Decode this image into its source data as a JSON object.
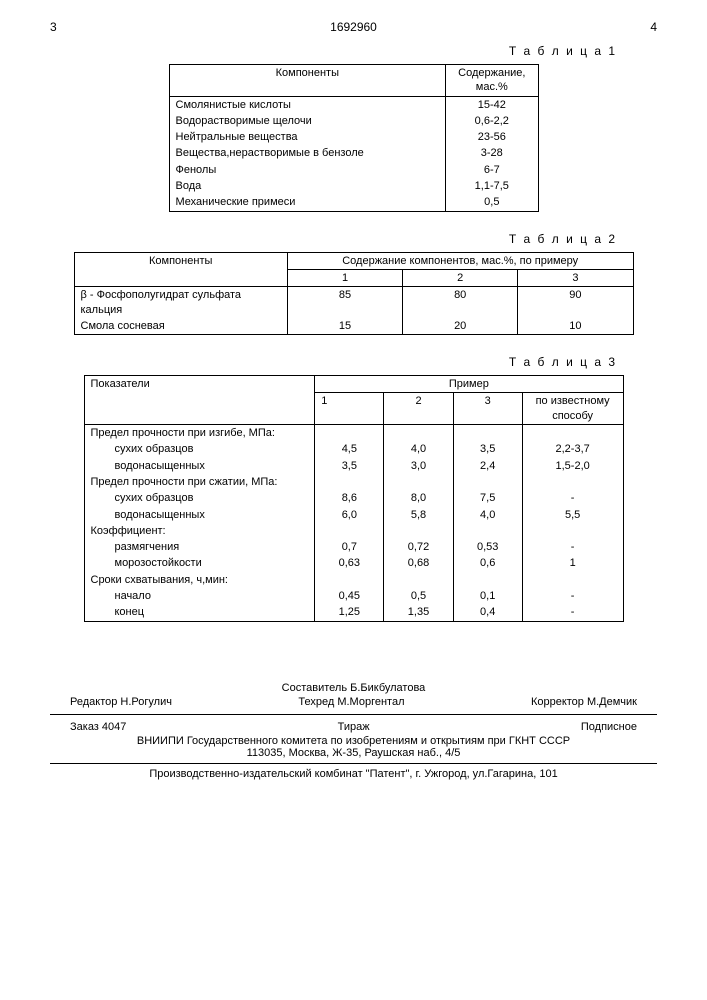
{
  "header": {
    "col_left": "3",
    "doc": "1692960",
    "col_right": "4"
  },
  "table1": {
    "caption": "Т а б л и ц а 1",
    "h1": "Компоненты",
    "h2": "Содержание, мас.%",
    "rows": [
      [
        "Смолянистые кислоты",
        "15-42"
      ],
      [
        "Водорастворимые щелочи",
        "0,6-2,2"
      ],
      [
        "Нейтральные вещества",
        "23-56"
      ],
      [
        "Вещества,нерастворимые в бензоле",
        "3-28"
      ],
      [
        "Фенолы",
        "6-7"
      ],
      [
        "Вода",
        "1,1-7,5"
      ],
      [
        "Механические примеси",
        "0,5"
      ]
    ]
  },
  "table2": {
    "caption": "Т а б л и ц а 2",
    "h1": "Компоненты",
    "h2": "Содержание компонентов, мас.%, по примеру",
    "sub": [
      "1",
      "2",
      "3"
    ],
    "rows": [
      [
        "β - Фосфополугидрат сульфата кальция",
        "85",
        "80",
        "90"
      ],
      [
        "Смола сосневая",
        "15",
        "20",
        "10"
      ]
    ]
  },
  "table3": {
    "caption": "Т а б л и ц а 3",
    "h1": "Показатели",
    "h2": "Пример",
    "sub": [
      "1",
      "2",
      "3",
      "по известному способу"
    ],
    "rows": [
      {
        "label": "Предел прочности при изгибе, МПа:",
        "vals": [
          "",
          "",
          "",
          ""
        ],
        "group": true
      },
      {
        "label": "сухих образцов",
        "vals": [
          "4,5",
          "4,0",
          "3,5",
          "2,2-3,7"
        ]
      },
      {
        "label": "водонасыщенных",
        "vals": [
          "3,5",
          "3,0",
          "2,4",
          "1,5-2,0"
        ]
      },
      {
        "label": "Предел прочности при сжатии, МПа:",
        "vals": [
          "",
          "",
          "",
          ""
        ],
        "group": true
      },
      {
        "label": "сухих образцов",
        "vals": [
          "8,6",
          "8,0",
          "7,5",
          "-"
        ]
      },
      {
        "label": "водонасыщенных",
        "vals": [
          "6,0",
          "5,8",
          "4,0",
          "5,5"
        ]
      },
      {
        "label": "Коэффициент:",
        "vals": [
          "",
          "",
          "",
          ""
        ],
        "group": true
      },
      {
        "label": "размягчения",
        "vals": [
          "0,7",
          "0,72",
          "0,53",
          "-"
        ]
      },
      {
        "label": "морозостойкости",
        "vals": [
          "0,63",
          "0,68",
          "0,6",
          "1"
        ]
      },
      {
        "label": "Сроки схватывания, ч,мин:",
        "vals": [
          "",
          "",
          "",
          ""
        ],
        "group": true
      },
      {
        "label": "начало",
        "vals": [
          "0,45",
          "0,5",
          "0,1",
          "-"
        ]
      },
      {
        "label": "конец",
        "vals": [
          "1,25",
          "1,35",
          "0,4",
          "-"
        ]
      }
    ]
  },
  "footer": {
    "compiler": "Составитель Б.Бикбулатова",
    "editor": "Редактор Н.Рогулич",
    "tech": "Техред М.Моргентал",
    "corrector": "Корректор М.Демчик",
    "order": "Заказ 4047",
    "tirage": "Тираж",
    "sub": "Подписное",
    "org": "ВНИИПИ Государственного комитета по изобретениям и открытиям при ГКНТ СССР",
    "addr": "113035, Москва, Ж-35, Раушская наб., 4/5",
    "print": "Производственно-издательский комбинат \"Патент\", г. Ужгород, ул.Гагарина, 101"
  }
}
